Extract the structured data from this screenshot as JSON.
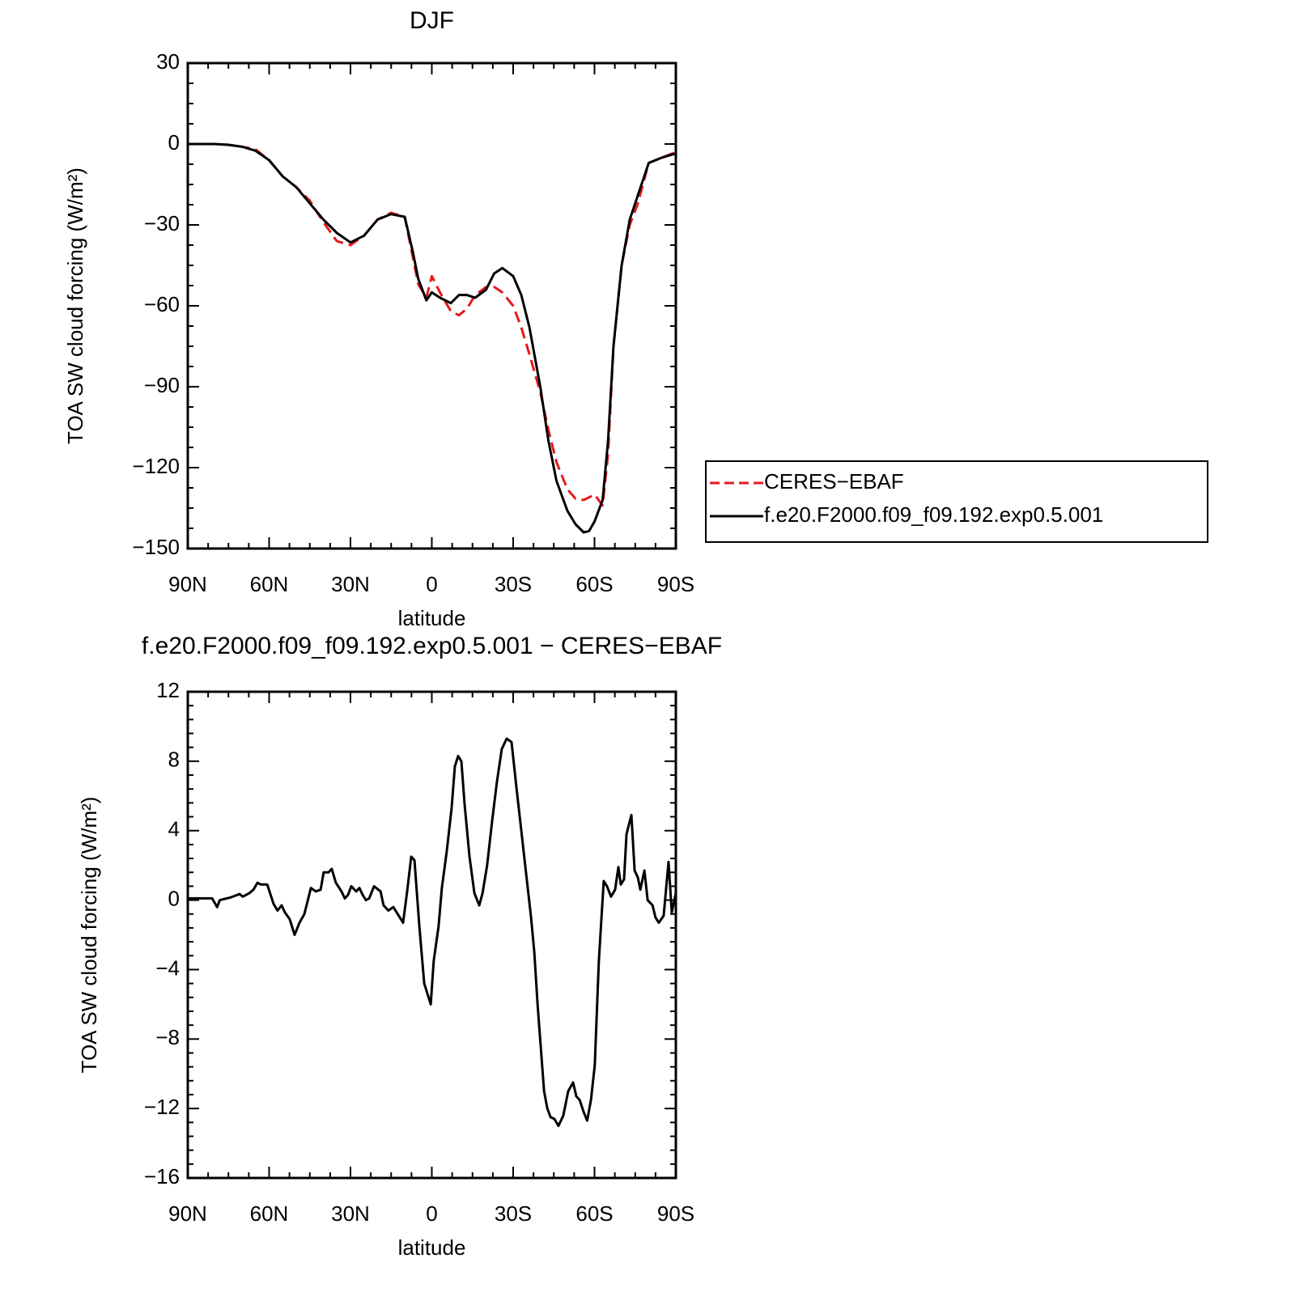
{
  "chart_data": [
    {
      "type": "line",
      "title": "DJF",
      "xlabel": "latitude",
      "ylabel": "TOA SW cloud forcing (W/m²)",
      "x": [
        90,
        85,
        80,
        75,
        70,
        65,
        60,
        55,
        50,
        45,
        40,
        35,
        30,
        25,
        20,
        15,
        10,
        7,
        5,
        2,
        0,
        -3,
        -7,
        -10,
        -13,
        -16,
        -20,
        -23,
        -26,
        -30,
        -33,
        -36,
        -40,
        -43,
        -46,
        -50,
        -53,
        -56,
        -58,
        -60,
        -63,
        -65,
        -67,
        -70,
        -73,
        -76,
        -80,
        -85,
        -90
      ],
      "series": [
        {
          "name": "CERES−EBAF",
          "color": "#e41a1c",
          "dashed": true,
          "values": [
            0,
            0,
            0,
            -0.3,
            -1,
            -2,
            -6,
            -12,
            -16,
            -21,
            -29,
            -36,
            -37.5,
            -34,
            -28,
            -25.5,
            -27,
            -42,
            -52,
            -57,
            -49,
            -55,
            -62,
            -63.5,
            -61,
            -56,
            -53,
            -53,
            -55,
            -60,
            -68,
            -78,
            -92,
            -106,
            -118,
            -128,
            -131.5,
            -132,
            -131,
            -130,
            -134,
            -115,
            -75,
            -45,
            -30,
            -22,
            -7,
            -5,
            -3
          ]
        },
        {
          "name": "f.e20.F2000.f09_f09.192.exp0.5.001",
          "color": "#000000",
          "dashed": false,
          "values": [
            0,
            0,
            0,
            -0.3,
            -1,
            -2.5,
            -6,
            -12,
            -16,
            -22,
            -28,
            -33,
            -36.5,
            -34,
            -28,
            -26,
            -27,
            -40,
            -50,
            -58,
            -55,
            -57,
            -59,
            -56,
            -56,
            -57,
            -54,
            -48,
            -46,
            -49,
            -56,
            -68,
            -90,
            -110,
            -125,
            -136,
            -141,
            -144,
            -143.5,
            -140,
            -132,
            -110,
            -75,
            -45,
            -28,
            -19,
            -7,
            -5,
            -3.5
          ]
        }
      ],
      "xlim": [
        90,
        -90
      ],
      "xticks": [
        {
          "value": 90,
          "label": "90N"
        },
        {
          "value": 60,
          "label": "60N"
        },
        {
          "value": 30,
          "label": "30N"
        },
        0,
        {
          "value": -30,
          "label": "30S"
        },
        {
          "value": -60,
          "label": "60S"
        },
        {
          "value": -90,
          "label": "90S"
        }
      ],
      "ylim": [
        -150,
        30
      ],
      "yticks": [
        {
          "value": -150,
          "label": "−150"
        },
        {
          "value": -120,
          "label": "−120"
        },
        {
          "value": -90,
          "label": "−90"
        },
        {
          "value": -60,
          "label": "−60"
        },
        {
          "value": -30,
          "label": "−30"
        },
        0,
        30
      ],
      "legend": "outside-right"
    },
    {
      "type": "line",
      "title": "f.e20.F2000.f09_f09.192.exp0.5.001 − CERES−EBAF",
      "xlabel": "latitude",
      "ylabel": "TOA SW cloud forcing (W/m²)",
      "x": [
        90,
        83.1,
        81.0,
        79.2,
        78.2,
        74.3,
        70.9,
        69.7,
        67.3,
        65.8,
        64.3,
        63.1,
        60.7,
        58.4,
        56.9,
        55.4,
        54.2,
        52.4,
        50.6,
        48.8,
        47.0,
        44.6,
        42.8,
        41.0,
        39.9,
        38.1,
        36.9,
        35.4,
        33.3,
        32.1,
        30.9,
        29.7,
        27.9,
        26.7,
        25.5,
        24.3,
        23.1,
        21.3,
        18.9,
        17.8,
        16.0,
        14.2,
        13.0,
        10.6,
        9.1,
        7.6,
        6.4,
        4.6,
        2.8,
        0.4,
        -0.7,
        -2.5,
        -3.7,
        -5.5,
        -7.3,
        -8.5,
        -9.7,
        -10.9,
        -12.1,
        -13.9,
        -15.7,
        -17.5,
        -18.7,
        -20.4,
        -22.2,
        -24.0,
        -25.8,
        -27.6,
        -29.4,
        -31.2,
        -33.0,
        -34.8,
        -36.6,
        -37.8,
        -39.0,
        -40.2,
        -41.4,
        -42.6,
        -43.8,
        -45.2,
        -46.7,
        -48.5,
        -50.3,
        -52.1,
        -53.3,
        -54.5,
        -56.0,
        -57.3,
        -58.7,
        -60.1,
        -61.6,
        -63.4,
        -64.6,
        -66.1,
        -67.6,
        -68.8,
        -69.7,
        -70.9,
        -71.8,
        -73.6,
        -74.8,
        -76.0,
        -76.9,
        -78.4,
        -79.6,
        -81.4,
        -82.5,
        -83.7,
        -85.5,
        -87.3,
        -88.5,
        -90
      ],
      "values": [
        0.1,
        0.1,
        0.1,
        -0.4,
        0,
        0.15,
        0.35,
        0.2,
        0.4,
        0.6,
        1.0,
        0.9,
        0.9,
        -0.2,
        -0.6,
        -0.3,
        -0.7,
        -1.1,
        -2.0,
        -1.3,
        -0.8,
        0.7,
        0.5,
        0.6,
        1.6,
        1.6,
        1.8,
        1.0,
        0.5,
        0.1,
        0.3,
        0.8,
        0.5,
        0.7,
        0.3,
        0.0,
        0.1,
        0.8,
        0.5,
        -0.3,
        -0.6,
        -0.4,
        -0.7,
        -1.3,
        0.5,
        2.5,
        2.3,
        -1.5,
        -4.8,
        -6.0,
        -3.5,
        -1.5,
        0.7,
        2.8,
        5.3,
        7.7,
        8.3,
        8.0,
        5.5,
        2.5,
        0.4,
        -0.3,
        0.4,
        2.0,
        4.5,
        6.8,
        8.7,
        9.3,
        9.1,
        6.5,
        4.0,
        1.5,
        -1.0,
        -3.0,
        -6.0,
        -8.5,
        -11.0,
        -12.0,
        -12.5,
        -12.6,
        -13.0,
        -12.4,
        -11.0,
        -10.5,
        -11.3,
        -11.5,
        -12.2,
        -12.7,
        -11.5,
        -9.5,
        -3.5,
        1.1,
        0.8,
        0.2,
        0.6,
        1.9,
        0.9,
        1.2,
        3.8,
        4.9,
        1.7,
        1.3,
        0.6,
        1.7,
        0.0,
        -0.3,
        -1.0,
        -1.3,
        -0.9,
        2.2,
        -0.7,
        0.4
      ],
      "color": "#000000",
      "xlim": [
        90,
        -90
      ],
      "xticks": [
        {
          "value": 90,
          "label": "90N"
        },
        {
          "value": 60,
          "label": "60N"
        },
        {
          "value": 30,
          "label": "30N"
        },
        0,
        {
          "value": -30,
          "label": "30S"
        },
        {
          "value": -60,
          "label": "60S"
        },
        {
          "value": -90,
          "label": "90S"
        }
      ],
      "ylim": [
        -16,
        12
      ],
      "yticks": [
        {
          "value": -16,
          "label": "−16"
        },
        {
          "value": -12,
          "label": "−12"
        },
        {
          "value": -8,
          "label": "−8"
        },
        {
          "value": -4,
          "label": "−4"
        },
        0,
        4,
        8,
        12
      ]
    }
  ]
}
